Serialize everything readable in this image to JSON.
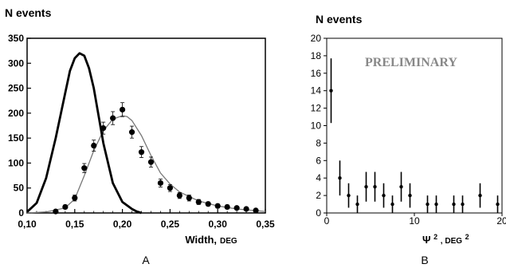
{
  "chart_data": [
    {
      "type": "line",
      "panel_label": "A",
      "ylabel": "N events",
      "xlabel": "Width,",
      "xlabel_unit": "DEG",
      "xlim": [
        0.1,
        0.35
      ],
      "ylim": [
        0,
        350
      ],
      "x_ticks": [
        "0,10",
        "0,15",
        "0,20",
        "0,25",
        "0,30",
        "0,35"
      ],
      "x_tick_values": [
        0.1,
        0.15,
        0.2,
        0.25,
        0.3,
        0.35
      ],
      "y_ticks": [
        "0",
        "50",
        "100",
        "150",
        "200",
        "250",
        "300",
        "350"
      ],
      "y_tick_display": [
        "0",
        "50",
        "100",
        "150",
        "200",
        "250",
        "300",
        "350"
      ],
      "y_tick_values": [
        0,
        50,
        100,
        150,
        200,
        250,
        300,
        350
      ],
      "series": [
        {
          "style": "thick-curve",
          "x": [
            0.1,
            0.11,
            0.12,
            0.13,
            0.14,
            0.145,
            0.15,
            0.155,
            0.16,
            0.165,
            0.17,
            0.175,
            0.18,
            0.19,
            0.2,
            0.21,
            0.215,
            0.22
          ],
          "y": [
            2,
            20,
            70,
            150,
            240,
            285,
            310,
            320,
            315,
            290,
            250,
            195,
            140,
            60,
            22,
            8,
            3,
            0
          ]
        },
        {
          "style": "points-with-errors",
          "x": [
            0.13,
            0.14,
            0.15,
            0.16,
            0.17,
            0.18,
            0.19,
            0.2,
            0.21,
            0.22,
            0.23,
            0.24,
            0.25,
            0.26,
            0.27,
            0.28,
            0.29,
            0.3,
            0.31,
            0.32,
            0.33,
            0.34
          ],
          "y": [
            3,
            12,
            30,
            90,
            135,
            170,
            190,
            207,
            162,
            122,
            102,
            60,
            50,
            35,
            30,
            22,
            18,
            14,
            12,
            10,
            8,
            5
          ],
          "err": [
            2,
            4,
            6,
            9,
            11,
            12,
            13,
            14,
            12,
            11,
            10,
            8,
            7,
            6,
            6,
            5,
            4,
            4,
            4,
            3,
            3,
            2
          ]
        },
        {
          "style": "thin-fit",
          "x": [
            0.1,
            0.12,
            0.14,
            0.15,
            0.16,
            0.17,
            0.18,
            0.19,
            0.2,
            0.205,
            0.21,
            0.22,
            0.23,
            0.24,
            0.25,
            0.26,
            0.28,
            0.3,
            0.32,
            0.35
          ],
          "y": [
            0,
            2,
            10,
            28,
            75,
            125,
            165,
            188,
            195,
            193,
            185,
            155,
            115,
            80,
            58,
            42,
            24,
            14,
            8,
            3
          ]
        }
      ]
    },
    {
      "type": "scatter",
      "panel_label": "B",
      "ylabel": "N events",
      "xlabel": "Ψ",
      "xlabel_sup": "2",
      "xlabel_unit": ", DEG",
      "xlabel_unit_sup": "2",
      "annotation": "PRELIMINARY",
      "xlim": [
        0,
        20
      ],
      "ylim": [
        0,
        20
      ],
      "x_ticks": [
        "0",
        "10",
        "20"
      ],
      "x_tick_display": [
        "0",
        "10",
        "20"
      ],
      "x_tick_values": [
        0,
        10,
        20
      ],
      "y_ticks": [
        "0",
        "2",
        "4",
        "6",
        "8",
        "10",
        "12",
        "14",
        "16",
        "18",
        "20"
      ],
      "y_tick_values": [
        0,
        2,
        4,
        6,
        8,
        10,
        12,
        14,
        16,
        18,
        20
      ],
      "series": [
        {
          "style": "points-with-errors",
          "x": [
            0.5,
            1.5,
            2.5,
            3.5,
            4.5,
            5.5,
            6.5,
            7.5,
            8.5,
            9.5,
            10.5,
            11.5,
            12.5,
            13.5,
            14.5,
            15.5,
            16.5,
            17.5,
            18.5,
            19.5
          ],
          "y": [
            14,
            4,
            2,
            1,
            3,
            3,
            2,
            1,
            3,
            2,
            0,
            1,
            1,
            0,
            1,
            1,
            0,
            2,
            0,
            1
          ],
          "err": [
            3.7,
            2,
            1.4,
            1,
            1.7,
            1.7,
            1.4,
            1,
            1.7,
            1.4,
            0,
            1,
            1,
            0,
            1,
            1,
            0,
            1.4,
            0,
            1
          ]
        }
      ]
    }
  ]
}
